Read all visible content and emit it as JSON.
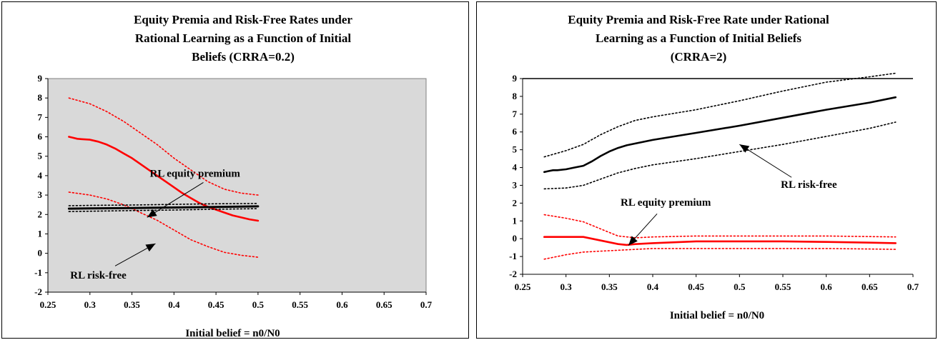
{
  "chart_data": [
    {
      "type": "line",
      "title_lines": [
        "Equity Premia and Risk-Free Rates under",
        "Rational Learning as a Function of Initial",
        "Beliefs (CRRA=0.2)"
      ],
      "xlabel": "Initial  belief = n0/N0",
      "ylabel": "",
      "xlim": [
        0.25,
        0.7
      ],
      "ylim": [
        -2,
        9
      ],
      "xticks": [
        "0.25",
        "0.3",
        "0.35",
        "0.4",
        "0.45",
        "0.5",
        "0.55",
        "0.6",
        "0.65",
        "0.7"
      ],
      "yticks": [
        "-2",
        "-1",
        "0",
        "1",
        "2",
        "3",
        "4",
        "5",
        "6",
        "7",
        "8",
        "9"
      ],
      "grid": false,
      "plot_background": "#d9d9d9",
      "series": [
        {
          "role": "equity",
          "color": "#ff0000",
          "style": "solid",
          "x": [
            0.275,
            0.28,
            0.285,
            0.29,
            0.3,
            0.31,
            0.32,
            0.33,
            0.34,
            0.35,
            0.36,
            0.37,
            0.38,
            0.39,
            0.4,
            0.41,
            0.42,
            0.43,
            0.44,
            0.45,
            0.46,
            0.47,
            0.48,
            0.49,
            0.5
          ],
          "y": [
            6.0,
            5.95,
            5.9,
            5.88,
            5.85,
            5.75,
            5.6,
            5.4,
            5.15,
            4.9,
            4.6,
            4.3,
            4.0,
            3.7,
            3.4,
            3.1,
            2.85,
            2.6,
            2.4,
            2.25,
            2.1,
            1.95,
            1.85,
            1.75,
            1.68
          ]
        },
        {
          "role": "equity-band-upper",
          "color": "#ff0000",
          "style": "dotted",
          "x": [
            0.275,
            0.3,
            0.32,
            0.34,
            0.36,
            0.38,
            0.4,
            0.42,
            0.44,
            0.46,
            0.48,
            0.5
          ],
          "y": [
            8.0,
            7.7,
            7.3,
            6.8,
            6.2,
            5.6,
            4.9,
            4.3,
            3.7,
            3.3,
            3.1,
            3.0
          ]
        },
        {
          "role": "equity-band-lower",
          "color": "#ff0000",
          "style": "dotted",
          "x": [
            0.275,
            0.3,
            0.32,
            0.34,
            0.36,
            0.38,
            0.4,
            0.42,
            0.44,
            0.46,
            0.48,
            0.5
          ],
          "y": [
            3.15,
            3.0,
            2.8,
            2.5,
            2.1,
            1.7,
            1.2,
            0.7,
            0.35,
            0.05,
            -0.1,
            -0.2
          ]
        },
        {
          "role": "riskfree",
          "color": "#000000",
          "style": "solid",
          "x": [
            0.275,
            0.3,
            0.35,
            0.4,
            0.45,
            0.5
          ],
          "y": [
            2.3,
            2.31,
            2.33,
            2.36,
            2.39,
            2.42
          ]
        },
        {
          "role": "riskfree-band-upper",
          "color": "#000000",
          "style": "dotted",
          "x": [
            0.275,
            0.3,
            0.35,
            0.4,
            0.45,
            0.5
          ],
          "y": [
            2.45,
            2.47,
            2.49,
            2.52,
            2.55,
            2.57
          ]
        },
        {
          "role": "riskfree-band-lower",
          "color": "#000000",
          "style": "dotted",
          "x": [
            0.275,
            0.3,
            0.35,
            0.4,
            0.45,
            0.5
          ],
          "y": [
            2.15,
            2.17,
            2.2,
            2.23,
            2.27,
            2.3
          ]
        }
      ],
      "annotations": [
        {
          "text": "RL equity premium",
          "tx": 0.425,
          "ty": 3.95,
          "ax": 0.435,
          "ay": 3.65,
          "hx": 0.368,
          "hy": 1.85
        },
        {
          "text": "RL risk-free",
          "tx": 0.31,
          "ty": -1.3,
          "ax": 0.33,
          "ay": -0.65,
          "hx": 0.378,
          "hy": 0.5
        }
      ]
    },
    {
      "type": "line",
      "title_lines": [
        "Equity Premia and Risk-Free Rate under Rational",
        "Learning as a Function of Initial Beliefs",
        "(CRRA=2)"
      ],
      "xlabel": "Initial  belief = n0/N0",
      "ylabel": "",
      "xlim": [
        0.25,
        0.7
      ],
      "ylim": [
        -2,
        9
      ],
      "xticks": [
        "0.25",
        "0.3",
        "0.35",
        "0.4",
        "0.45",
        "0.5",
        "0.55",
        "0.6",
        "0.65",
        "0.7"
      ],
      "yticks": [
        "-2",
        "-1",
        "0",
        "1",
        "2",
        "3",
        "4",
        "5",
        "6",
        "7",
        "8",
        "9"
      ],
      "grid": false,
      "plot_background": "#ffffff",
      "series": [
        {
          "role": "riskfree",
          "color": "#000000",
          "style": "solid",
          "x": [
            0.275,
            0.28,
            0.285,
            0.29,
            0.3,
            0.31,
            0.32,
            0.33,
            0.34,
            0.35,
            0.36,
            0.37,
            0.38,
            0.4,
            0.45,
            0.5,
            0.55,
            0.6,
            0.65,
            0.68
          ],
          "y": [
            3.75,
            3.8,
            3.85,
            3.85,
            3.9,
            4.0,
            4.1,
            4.35,
            4.65,
            4.9,
            5.1,
            5.25,
            5.35,
            5.55,
            5.95,
            6.35,
            6.8,
            7.25,
            7.65,
            7.95
          ]
        },
        {
          "role": "riskfree-band-upper",
          "color": "#000000",
          "style": "dotted",
          "x": [
            0.275,
            0.3,
            0.32,
            0.34,
            0.36,
            0.38,
            0.4,
            0.45,
            0.5,
            0.55,
            0.6,
            0.65,
            0.68
          ],
          "y": [
            4.6,
            4.95,
            5.3,
            5.85,
            6.3,
            6.65,
            6.85,
            7.25,
            7.75,
            8.3,
            8.8,
            9.1,
            9.3
          ]
        },
        {
          "role": "riskfree-band-lower",
          "color": "#000000",
          "style": "dotted",
          "x": [
            0.275,
            0.3,
            0.32,
            0.34,
            0.36,
            0.38,
            0.4,
            0.45,
            0.5,
            0.55,
            0.6,
            0.65,
            0.68
          ],
          "y": [
            2.8,
            2.85,
            3.0,
            3.35,
            3.7,
            3.95,
            4.15,
            4.5,
            4.9,
            5.3,
            5.75,
            6.2,
            6.55
          ]
        },
        {
          "role": "equity",
          "color": "#ff0000",
          "style": "solid",
          "x": [
            0.275,
            0.3,
            0.32,
            0.34,
            0.36,
            0.37,
            0.38,
            0.4,
            0.45,
            0.5,
            0.55,
            0.6,
            0.65,
            0.68
          ],
          "y": [
            0.1,
            0.1,
            0.1,
            -0.1,
            -0.3,
            -0.35,
            -0.3,
            -0.25,
            -0.15,
            -0.15,
            -0.15,
            -0.18,
            -0.22,
            -0.25
          ]
        },
        {
          "role": "equity-band-upper",
          "color": "#ff0000",
          "style": "dotted",
          "x": [
            0.275,
            0.3,
            0.32,
            0.34,
            0.36,
            0.38,
            0.4,
            0.45,
            0.5,
            0.55,
            0.6,
            0.65,
            0.68
          ],
          "y": [
            1.35,
            1.15,
            0.95,
            0.55,
            0.15,
            0.05,
            0.1,
            0.15,
            0.15,
            0.15,
            0.15,
            0.12,
            0.1
          ]
        },
        {
          "role": "equity-band-lower",
          "color": "#ff0000",
          "style": "dotted",
          "x": [
            0.275,
            0.3,
            0.32,
            0.34,
            0.36,
            0.38,
            0.4,
            0.45,
            0.5,
            0.55,
            0.6,
            0.65,
            0.68
          ],
          "y": [
            -1.15,
            -0.9,
            -0.75,
            -0.7,
            -0.65,
            -0.6,
            -0.55,
            -0.55,
            -0.55,
            -0.55,
            -0.55,
            -0.58,
            -0.6
          ]
        }
      ],
      "annotations": [
        {
          "text": "RL equity premium",
          "tx": 0.415,
          "ty": 1.85,
          "ax": 0.405,
          "ay": 1.4,
          "hx": 0.372,
          "hy": -0.38
        },
        {
          "text": "RL risk-free",
          "tx": 0.58,
          "ty": 2.85,
          "ax": 0.56,
          "ay": 3.45,
          "hx": 0.5,
          "hy": 5.3
        }
      ]
    }
  ]
}
